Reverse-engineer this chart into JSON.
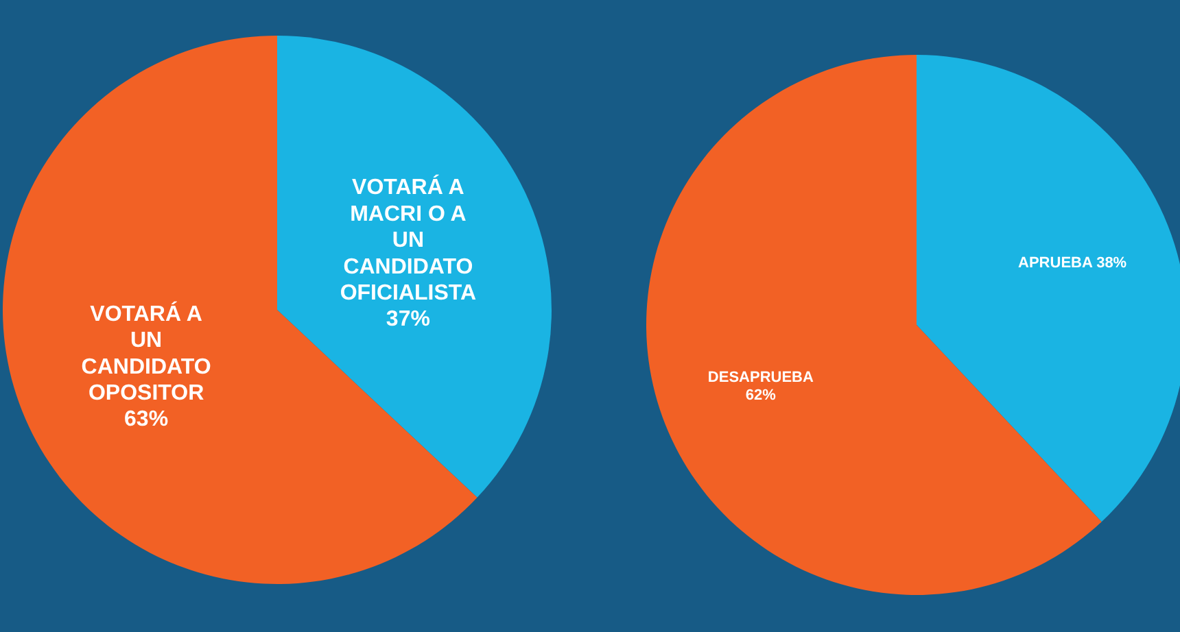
{
  "chart_data": [
    {
      "type": "pie",
      "categories": [
        "VOTARÁ A MACRI O A UN CANDIDATO OFICIALISTA",
        "VOTARÁ A UN CANDIDATO OPOSITOR"
      ],
      "values": [
        37,
        63
      ],
      "colors": [
        "#1ab4e3",
        "#f26125"
      ],
      "value_labels": [
        "37%",
        "63%"
      ]
    },
    {
      "type": "pie",
      "categories": [
        "APRUEBA",
        "DESAPRUEBA"
      ],
      "values": [
        38,
        62
      ],
      "colors": [
        "#1ab4e3",
        "#f26125"
      ],
      "value_labels": [
        "38%",
        "62%"
      ]
    }
  ]
}
